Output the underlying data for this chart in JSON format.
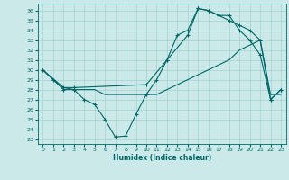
{
  "xlabel": "Humidex (Indice chaleur)",
  "background_color": "#cce9e9",
  "line_color": "#006666",
  "xlim": [
    -0.5,
    23.5
  ],
  "ylim": [
    22.5,
    36.7
  ],
  "xticks": [
    0,
    1,
    2,
    3,
    4,
    5,
    6,
    7,
    8,
    9,
    10,
    11,
    12,
    13,
    14,
    15,
    16,
    17,
    18,
    19,
    20,
    21,
    22,
    23
  ],
  "yticks": [
    23,
    24,
    25,
    26,
    27,
    28,
    29,
    30,
    31,
    32,
    33,
    34,
    35,
    36
  ],
  "series1_x": [
    0,
    1,
    2,
    3,
    4,
    5,
    6,
    7,
    8,
    9,
    10,
    11,
    12,
    13,
    14,
    15,
    16,
    17,
    18,
    19,
    20,
    21,
    22,
    23
  ],
  "series1_y": [
    30,
    29,
    28,
    28,
    27,
    26.5,
    25,
    23.2,
    23.3,
    25.5,
    27.5,
    29,
    31,
    33.5,
    34,
    36.2,
    36,
    35.5,
    35.5,
    34,
    33,
    31.5,
    27,
    28
  ],
  "series2_x": [
    0,
    1,
    2,
    3,
    4,
    5,
    6,
    7,
    8,
    9,
    10,
    11,
    12,
    13,
    14,
    15,
    16,
    17,
    18,
    19,
    20,
    21,
    22,
    23
  ],
  "series2_y": [
    30,
    29,
    28.2,
    28,
    28,
    28,
    27.5,
    27.5,
    27.5,
    27.5,
    27.5,
    27.5,
    28,
    28.5,
    29,
    29.5,
    30,
    30.5,
    31,
    32,
    32.5,
    33,
    27.5,
    27.5
  ],
  "series3_x": [
    0,
    2,
    3,
    10,
    12,
    14,
    15,
    16,
    17,
    18,
    19,
    20,
    21,
    22,
    23
  ],
  "series3_y": [
    30,
    28.2,
    28.2,
    28.5,
    31,
    33.5,
    36.2,
    36,
    35.5,
    35,
    34.5,
    34,
    33,
    27,
    28
  ]
}
